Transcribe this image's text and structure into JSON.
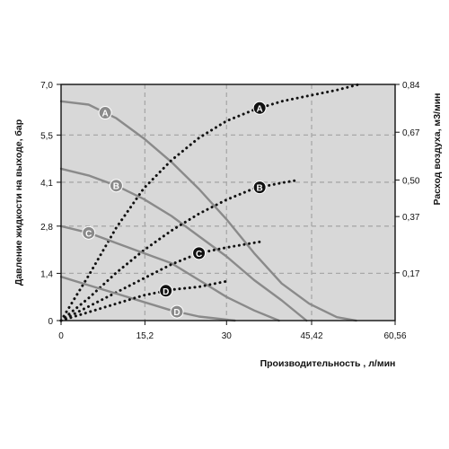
{
  "chart_data": {
    "type": "line",
    "xlabel": "Производительность , л/мин",
    "ylabel_left": "Давление жидкости на выходе, бар",
    "ylabel_right": "Расход воздуха, м3/мин",
    "x_ticks": [
      "0",
      "15,2",
      "30",
      "45,42",
      "60,56"
    ],
    "x_tick_values": [
      0,
      15.2,
      30,
      45.42,
      60.56
    ],
    "y_left_ticks": [
      "0",
      "1,4",
      "2,8",
      "4,1",
      "5,5",
      "7,0"
    ],
    "y_left_tick_values": [
      0,
      1.4,
      2.8,
      4.1,
      5.5,
      7.0
    ],
    "y_right_ticks": [
      "0,17",
      "0,37",
      "0,50",
      "0,67",
      "0,84"
    ],
    "y_right_tick_values": [
      0.17,
      0.37,
      0.5,
      0.67,
      0.84
    ],
    "xlim": [
      0,
      60.56
    ],
    "ylim_left": [
      0,
      7.0
    ],
    "ylim_right": [
      0,
      0.84
    ],
    "grid": true,
    "colors": {
      "plot_background": "#d8d8d8",
      "pressure_curve": "#8a8a8a",
      "air_curve": "#111111",
      "grid": "#a8a8a8",
      "frame": "#111111",
      "text": "#111111"
    },
    "series": [
      {
        "name": "A",
        "kind": "pressure",
        "axis": "left",
        "points": [
          [
            0,
            6.5
          ],
          [
            5,
            6.4
          ],
          [
            10,
            6.0
          ],
          [
            15,
            5.4
          ],
          [
            20,
            4.7
          ],
          [
            25,
            3.9
          ],
          [
            30,
            3.0
          ],
          [
            35,
            2.0
          ],
          [
            40,
            1.1
          ],
          [
            45,
            0.5
          ],
          [
            50,
            0.1
          ],
          [
            53.5,
            0.0
          ]
        ],
        "label_at": 8
      },
      {
        "name": "A",
        "kind": "air",
        "axis": "right",
        "points": [
          [
            0,
            0.0
          ],
          [
            5,
            0.16
          ],
          [
            10,
            0.33
          ],
          [
            15,
            0.47
          ],
          [
            20,
            0.57
          ],
          [
            25,
            0.65
          ],
          [
            30,
            0.71
          ],
          [
            35,
            0.75
          ],
          [
            40,
            0.78
          ],
          [
            45,
            0.8
          ],
          [
            50,
            0.82
          ],
          [
            54,
            0.84
          ]
        ],
        "label_at": 36
      },
      {
        "name": "B",
        "kind": "pressure",
        "axis": "left",
        "points": [
          [
            0,
            4.5
          ],
          [
            5,
            4.3
          ],
          [
            10,
            4.0
          ],
          [
            15,
            3.6
          ],
          [
            20,
            3.1
          ],
          [
            25,
            2.5
          ],
          [
            30,
            1.9
          ],
          [
            35,
            1.2
          ],
          [
            40,
            0.6
          ],
          [
            44.5,
            0.0
          ]
        ],
        "label_at": 10
      },
      {
        "name": "B",
        "kind": "air",
        "axis": "right",
        "points": [
          [
            0,
            0.0
          ],
          [
            5,
            0.08
          ],
          [
            10,
            0.17
          ],
          [
            15,
            0.25
          ],
          [
            20,
            0.32
          ],
          [
            25,
            0.38
          ],
          [
            30,
            0.43
          ],
          [
            35,
            0.47
          ],
          [
            40,
            0.49
          ],
          [
            43,
            0.5
          ]
        ],
        "label_at": 36
      },
      {
        "name": "C",
        "kind": "pressure",
        "axis": "left",
        "points": [
          [
            0,
            2.8
          ],
          [
            5,
            2.6
          ],
          [
            10,
            2.3
          ],
          [
            15,
            2.0
          ],
          [
            20,
            1.7
          ],
          [
            25,
            1.2
          ],
          [
            30,
            0.7
          ],
          [
            35,
            0.3
          ],
          [
            39.5,
            0.0
          ]
        ],
        "label_at": 5
      },
      {
        "name": "C",
        "kind": "air",
        "axis": "right",
        "points": [
          [
            0,
            0.0
          ],
          [
            5,
            0.05
          ],
          [
            10,
            0.1
          ],
          [
            15,
            0.15
          ],
          [
            20,
            0.2
          ],
          [
            25,
            0.24
          ],
          [
            30,
            0.26
          ],
          [
            36,
            0.28
          ]
        ],
        "label_at": 25
      },
      {
        "name": "D",
        "kind": "pressure",
        "axis": "left",
        "points": [
          [
            0,
            1.3
          ],
          [
            5,
            1.05
          ],
          [
            10,
            0.8
          ],
          [
            15,
            0.55
          ],
          [
            20,
            0.3
          ],
          [
            25,
            0.12
          ],
          [
            31.5,
            0.0
          ]
        ],
        "label_at": 21
      },
      {
        "name": "D",
        "kind": "air",
        "axis": "right",
        "points": [
          [
            0,
            0.0
          ],
          [
            5,
            0.03
          ],
          [
            10,
            0.06
          ],
          [
            15,
            0.09
          ],
          [
            20,
            0.11
          ],
          [
            25,
            0.12
          ],
          [
            30,
            0.14
          ]
        ],
        "label_at": 19
      }
    ]
  }
}
